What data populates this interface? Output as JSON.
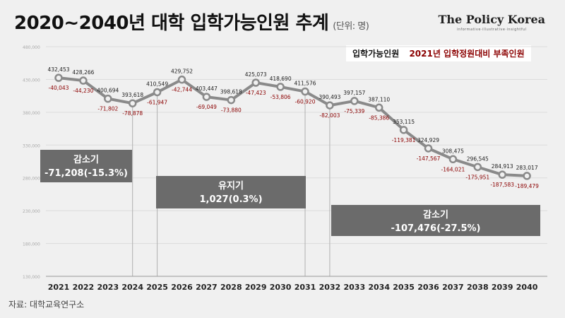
{
  "title": "2020~2040년 대학 입학가능인원 추계",
  "unit": "(단위: 명)",
  "brand": {
    "name": "The Policy Korea",
    "tagline": "informative·illustrative·insightful"
  },
  "legend": {
    "series1": "입학가능인원",
    "series2": "2021년 입학정원대비 부족인원"
  },
  "source": "자료: 대학교육연구소",
  "colors": {
    "line": "#8a8a8a",
    "deficit": "#8b0000",
    "box": "#6b6b6b",
    "boxText": "#ffffff",
    "grid": "#dcdcdc"
  },
  "chart_data": {
    "type": "line",
    "x": [
      "2021",
      "2022",
      "2023",
      "2024",
      "2025",
      "2026",
      "2027",
      "2028",
      "2029",
      "2030",
      "2031",
      "2032",
      "2033",
      "2034",
      "2035",
      "2036",
      "2037",
      "2038",
      "2039",
      "2040"
    ],
    "series": [
      {
        "name": "입학가능인원",
        "values": [
          432453,
          428266,
          400694,
          393618,
          410549,
          429752,
          403447,
          398618,
          425073,
          418690,
          411576,
          390493,
          397157,
          387110,
          353115,
          324929,
          308475,
          296545,
          284913,
          283017
        ]
      },
      {
        "name": "2021년 입학정원대비 부족인원",
        "values": [
          -40043,
          -44230,
          -71802,
          -78878,
          -61947,
          -42744,
          -69049,
          -73880,
          -47423,
          -53806,
          -60920,
          -82003,
          -75339,
          -85386,
          -119381,
          -147567,
          -164021,
          -175951,
          -187583,
          -189479
        ]
      }
    ],
    "ylim": [
      130000,
      480000
    ],
    "yticks": [
      130000,
      180000,
      230000,
      280000,
      330000,
      380000,
      430000,
      480000
    ],
    "ytick_labels": [
      "130,000",
      "180,000",
      "230,000",
      "280,000",
      "330,000",
      "380,000",
      "430,000",
      "480,000"
    ],
    "periods": [
      {
        "label": "감소기",
        "value": "-71,208(-15.3%)",
        "from": "2021",
        "to": "2024"
      },
      {
        "label": "유지기",
        "value": "1,027(0.3%)",
        "from": "2025",
        "to": "2031"
      },
      {
        "label": "감소기",
        "value": "-107,476(-27.5%)",
        "from": "2032",
        "to": "2040"
      }
    ]
  }
}
